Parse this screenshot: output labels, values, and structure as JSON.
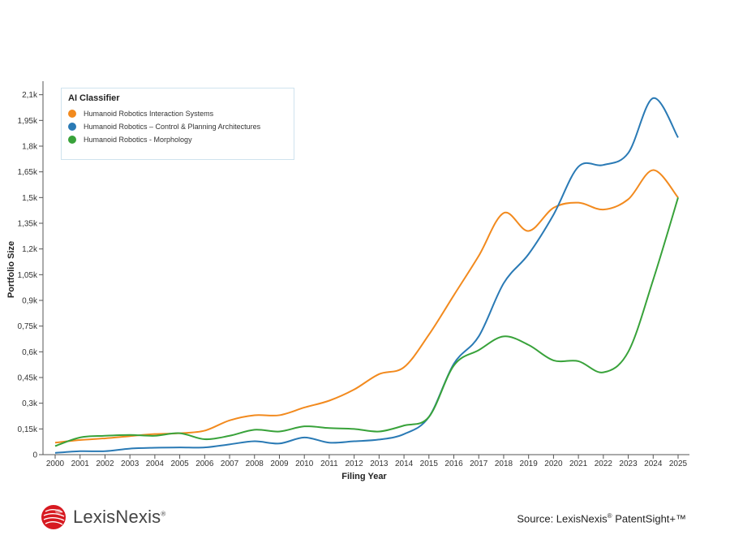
{
  "chart_data": {
    "type": "line",
    "xlabel": "Filing Year",
    "ylabel": "Portfolio Size",
    "x": [
      2000,
      2001,
      2002,
      2003,
      2004,
      2005,
      2006,
      2007,
      2008,
      2009,
      2010,
      2011,
      2012,
      2013,
      2014,
      2015,
      2016,
      2017,
      2018,
      2019,
      2020,
      2021,
      2022,
      2023,
      2024,
      2025
    ],
    "x_tick_labels": [
      "2000",
      "2001",
      "2002",
      "2003",
      "2004",
      "2005",
      "2006",
      "2007",
      "2008",
      "2009",
      "2010",
      "2011",
      "2012",
      "2013",
      "2014",
      "2015",
      "2016",
      "2017",
      "2018",
      "2019",
      "2020",
      "2021",
      "2022",
      "2023",
      "2024",
      "2025"
    ],
    "y_ticks": [
      0,
      150,
      300,
      450,
      600,
      750,
      900,
      1050,
      1200,
      1350,
      1500,
      1650,
      1800,
      1950,
      2100
    ],
    "y_tick_labels": [
      "0",
      "0,15k",
      "0,3k",
      "0,45k",
      "0,6k",
      "0,75k",
      "0,9k",
      "1,05k",
      "1,2k",
      "1,35k",
      "1,5k",
      "1,65k",
      "1,8k",
      "1,95k",
      "2,1k"
    ],
    "ylim": [
      0,
      2160
    ],
    "xlim": [
      2000,
      2025
    ],
    "grid": false,
    "legend": {
      "title": "AI Classifier",
      "placement": "top-left"
    },
    "series": [
      {
        "name": "Humanoid Robotics  Interaction Systems",
        "color": "#f28a1e",
        "values": [
          70,
          85,
          95,
          108,
          120,
          125,
          140,
          200,
          230,
          230,
          275,
          315,
          380,
          470,
          510,
          700,
          930,
          1160,
          1410,
          1305,
          1440,
          1470,
          1430,
          1490,
          1660,
          1500
        ]
      },
      {
        "name": "Humanoid Robotics  – Control & Planning Architectures",
        "color": "#2a7ab5",
        "values": [
          10,
          20,
          20,
          35,
          40,
          42,
          42,
          60,
          78,
          65,
          100,
          70,
          78,
          88,
          120,
          220,
          530,
          690,
          1000,
          1170,
          1400,
          1680,
          1690,
          1760,
          2080,
          1850
        ]
      },
      {
        "name": "Humanoid Robotics - Morphology",
        "color": "#38a23a",
        "values": [
          50,
          100,
          110,
          115,
          110,
          125,
          90,
          110,
          145,
          135,
          165,
          155,
          150,
          135,
          170,
          220,
          520,
          610,
          690,
          640,
          550,
          545,
          480,
          600,
          1020,
          1500
        ]
      }
    ]
  },
  "logo": {
    "brand": "LexisNexis",
    "reg": "®"
  },
  "source": {
    "prefix": "Source: LexisNexis",
    "reg": "®",
    "suffix": " PatentSight+™"
  }
}
